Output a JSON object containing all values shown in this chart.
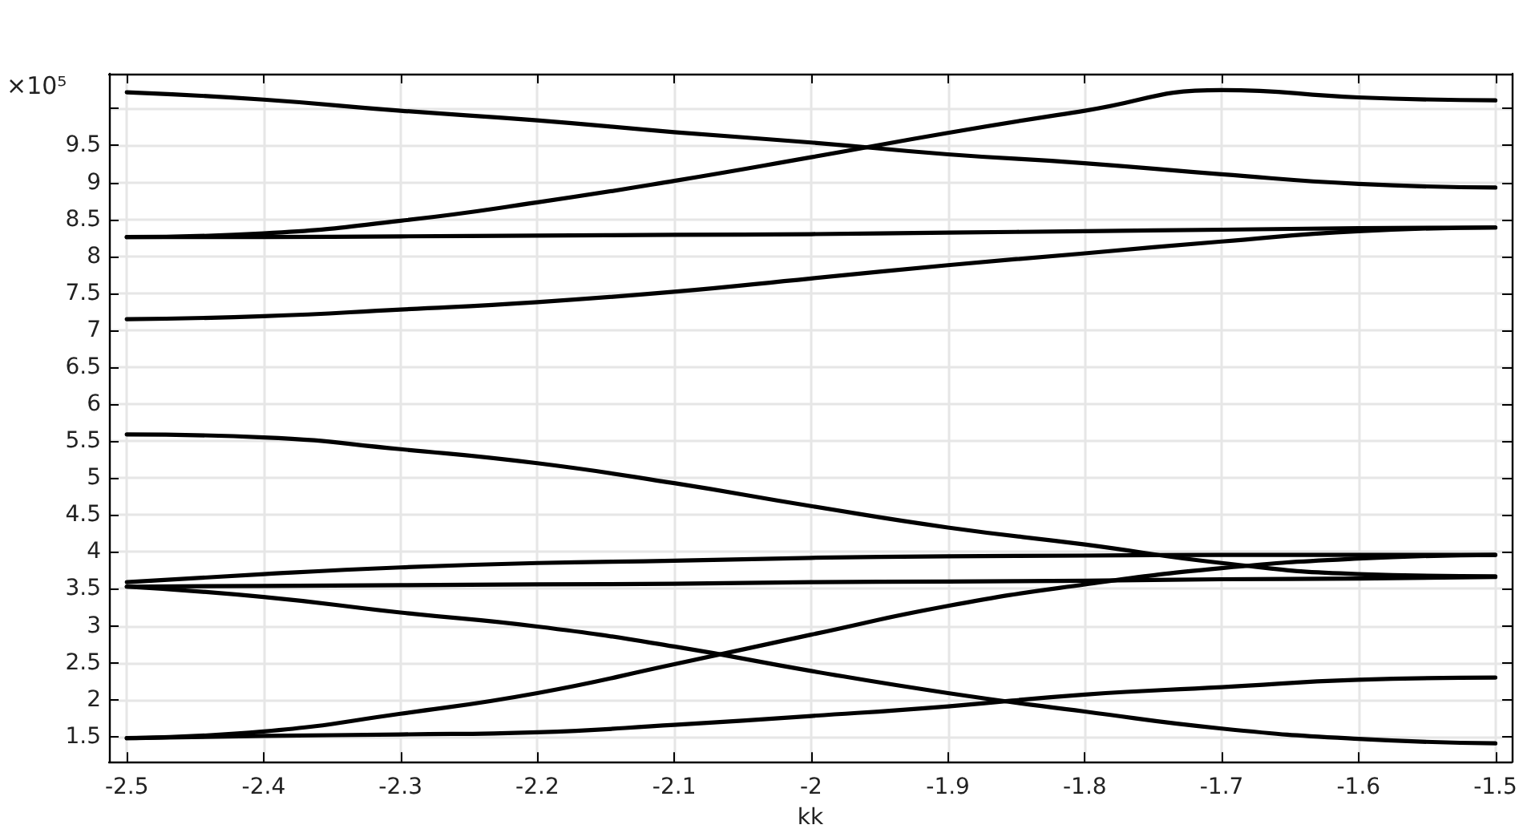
{
  "chart_data": {
    "type": "line",
    "xlabel": "kk",
    "annotations": [
      "×10⁵"
    ],
    "x": [
      -2.5,
      -2.4,
      -2.3,
      -2.2,
      -2.1,
      -2.0,
      -1.9,
      -1.8,
      -1.7,
      -1.6,
      -1.5
    ],
    "xlim": [
      -2.513,
      -1.488
    ],
    "xticks": [
      -2.5,
      -2.4,
      -2.3,
      -2.2,
      -2.1,
      -2,
      -1.9,
      -1.8,
      -1.7,
      -1.6,
      -1.5
    ],
    "ylim": [
      1.16,
      10.47
    ],
    "yticks": [
      1.5,
      2,
      2.5,
      3,
      3.5,
      4,
      4.5,
      5,
      5.5,
      6,
      6.5,
      7,
      7.5,
      8,
      8.5,
      9,
      9.5,
      {
        "value": 10,
        "label": null
      }
    ],
    "grid": true,
    "series": [
      {
        "color": "#000000",
        "values": [
          10.22,
          10.12,
          9.97,
          9.84,
          9.68,
          9.54,
          9.38,
          9.26,
          9.11,
          8.98,
          8.93
        ]
      },
      {
        "color": "#000000",
        "values": [
          8.26,
          8.31,
          8.48,
          8.73,
          9.02,
          9.34,
          9.67,
          9.97,
          10.25,
          10.15,
          10.11
        ]
      },
      {
        "color": "#000000",
        "values": [
          8.26,
          8.26,
          8.27,
          8.28,
          8.29,
          8.3,
          8.32,
          8.34,
          8.36,
          8.38,
          8.39
        ]
      },
      {
        "color": "#000000",
        "values": [
          7.15,
          7.19,
          7.28,
          7.38,
          7.52,
          7.7,
          7.88,
          8.04,
          8.2,
          8.34,
          8.39
        ]
      },
      {
        "color": "#000000",
        "values": [
          5.59,
          5.55,
          5.39,
          5.2,
          4.93,
          4.62,
          4.33,
          4.1,
          3.85,
          3.7,
          3.67
        ]
      },
      {
        "color": "#000000",
        "values": [
          3.59,
          3.7,
          3.79,
          3.85,
          3.88,
          3.92,
          3.94,
          3.95,
          3.96,
          3.96,
          3.96
        ]
      },
      {
        "color": "#000000",
        "values": [
          3.53,
          3.54,
          3.55,
          3.56,
          3.57,
          3.59,
          3.6,
          3.61,
          3.63,
          3.64,
          3.66
        ]
      },
      {
        "color": "#000000",
        "values": [
          3.53,
          3.39,
          3.18,
          2.99,
          2.72,
          2.39,
          2.09,
          1.84,
          1.61,
          1.47,
          1.41
        ]
      },
      {
        "color": "#000000",
        "values": [
          1.48,
          1.57,
          1.81,
          2.09,
          2.48,
          2.88,
          3.27,
          3.56,
          3.78,
          3.91,
          3.96
        ]
      },
      {
        "color": "#000000",
        "values": [
          1.48,
          1.51,
          1.53,
          1.56,
          1.66,
          1.78,
          1.91,
          2.07,
          2.17,
          2.27,
          2.3
        ]
      }
    ]
  }
}
